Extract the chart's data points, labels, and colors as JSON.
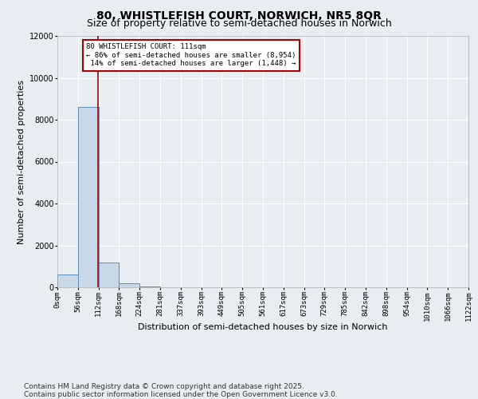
{
  "title": "80, WHISTLEFISH COURT, NORWICH, NR5 8QR",
  "subtitle": "Size of property relative to semi-detached houses in Norwich",
  "xlabel": "Distribution of semi-detached houses by size in Norwich",
  "ylabel": "Number of semi-detached properties",
  "footnote1": "Contains HM Land Registry data © Crown copyright and database right 2025.",
  "footnote2": "Contains public sector information licensed under the Open Government Licence v3.0.",
  "bin_edges": [
    0,
    56,
    112,
    168,
    224,
    281,
    337,
    393,
    449,
    505,
    561,
    617,
    673,
    729,
    785,
    842,
    898,
    954,
    1010,
    1066,
    1122
  ],
  "bar_heights": [
    600,
    8600,
    1200,
    200,
    50,
    15,
    8,
    5,
    3,
    2,
    2,
    1,
    1,
    1,
    1,
    1,
    0,
    0,
    0,
    0
  ],
  "bar_color": "#c8d8e8",
  "bar_edge_color": "#5b8db8",
  "property_size": 111,
  "vline_color": "#aa0000",
  "annotation_text": "80 WHISTLEFISH COURT: 111sqm\n← 86% of semi-detached houses are smaller (8,954)\n 14% of semi-detached houses are larger (1,448) →",
  "annotation_box_color": "#aa0000",
  "ylim": [
    0,
    12000
  ],
  "yticks": [
    0,
    2000,
    4000,
    6000,
    8000,
    10000,
    12000
  ],
  "background_color": "#e8edf2",
  "grid_color": "#ffffff",
  "title_fontsize": 10,
  "subtitle_fontsize": 9,
  "axis_label_fontsize": 8,
  "tick_fontsize": 6.5,
  "footnote_fontsize": 6.5
}
